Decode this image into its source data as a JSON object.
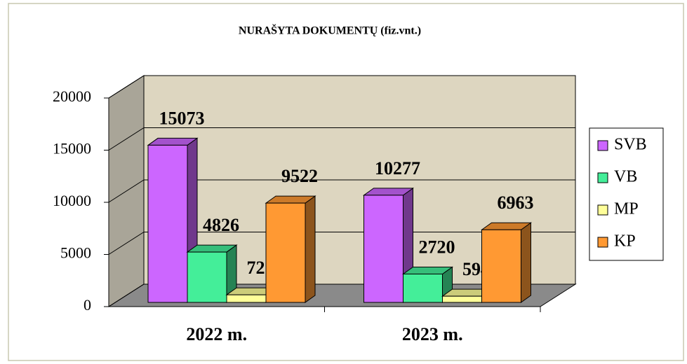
{
  "chart_data": {
    "type": "bar3d",
    "title": "NURAŠYTA DOKUMENTŲ (fiz.vnt.)",
    "categories": [
      "2022 m.",
      "2023 m."
    ],
    "series": [
      {
        "name": "SVB",
        "color": "#cc66ff",
        "values": [
          15073,
          10277
        ]
      },
      {
        "name": "VB",
        "color": "#44ee99",
        "values": [
          4826,
          2720
        ]
      },
      {
        "name": "MP",
        "color": "#ffff99",
        "values": [
          725,
          594
        ]
      },
      {
        "name": "KP",
        "color": "#ff9933",
        "values": [
          9522,
          6963
        ]
      }
    ],
    "ylim": [
      0,
      20000
    ],
    "yticks": [
      0,
      5000,
      10000,
      15000,
      20000
    ],
    "grid": true,
    "legend": "right"
  }
}
